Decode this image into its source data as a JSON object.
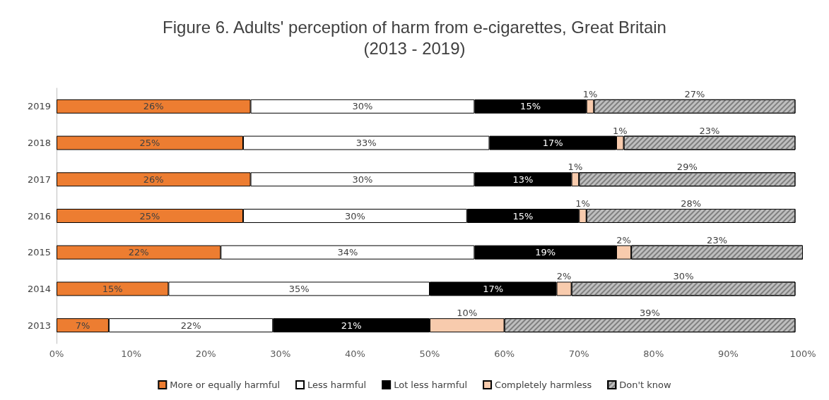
{
  "chart_data": {
    "type": "bar",
    "orientation": "horizontal",
    "stacked": true,
    "title": "Figure 6. Adults' perception of harm from e-cigarettes, Great Britain\n(2013 - 2019)",
    "categories": [
      "2019",
      "2018",
      "2017",
      "2016",
      "2015",
      "2014",
      "2013"
    ],
    "series": [
      {
        "name": "More or equally harmful",
        "color": "#ed7d31",
        "values": [
          26,
          25,
          26,
          25,
          22,
          15,
          7
        ],
        "value_labels": [
          "26%",
          "25%",
          "26%",
          "25%",
          "22%",
          "15%",
          "7%"
        ]
      },
      {
        "name": "Less harmful",
        "color": "#ffffff",
        "values": [
          30,
          33,
          30,
          30,
          34,
          35,
          22
        ],
        "value_labels": [
          "30%",
          "33%",
          "30%",
          "30%",
          "34%",
          "35%",
          "22%"
        ]
      },
      {
        "name": "Lot less harmful",
        "color": "#000000",
        "values": [
          15,
          17,
          13,
          15,
          19,
          17,
          21
        ],
        "value_labels": [
          "15%",
          "17%",
          "13%",
          "15%",
          "19%",
          "17%",
          "21%"
        ]
      },
      {
        "name": "Completely harmless",
        "color": "#f8cbad",
        "values": [
          1,
          1,
          1,
          1,
          2,
          2,
          10
        ],
        "value_labels": [
          "1%",
          "1%",
          "1%",
          "1%",
          "2%",
          "2%",
          "10%"
        ]
      },
      {
        "name": "Don't know",
        "color": "#bfbfbf",
        "values": [
          27,
          23,
          29,
          28,
          23,
          30,
          39
        ],
        "value_labels": [
          "27%",
          "23%",
          "29%",
          "28%",
          "23%",
          "30%",
          "39%"
        ]
      }
    ],
    "xlim": [
      0,
      100
    ],
    "xticks": [
      {
        "value": 0,
        "label": "0%"
      },
      {
        "value": 10,
        "label": "10%"
      },
      {
        "value": 20,
        "label": "20%"
      },
      {
        "value": 30,
        "label": "30%"
      },
      {
        "value": 40,
        "label": "40%"
      },
      {
        "value": 50,
        "label": "50%"
      },
      {
        "value": 60,
        "label": "60%"
      },
      {
        "value": 70,
        "label": "70%"
      },
      {
        "value": 80,
        "label": "80%"
      },
      {
        "value": 90,
        "label": "90%"
      },
      {
        "value": 100,
        "label": "100%"
      }
    ],
    "legend": "bottom",
    "grid": false
  }
}
